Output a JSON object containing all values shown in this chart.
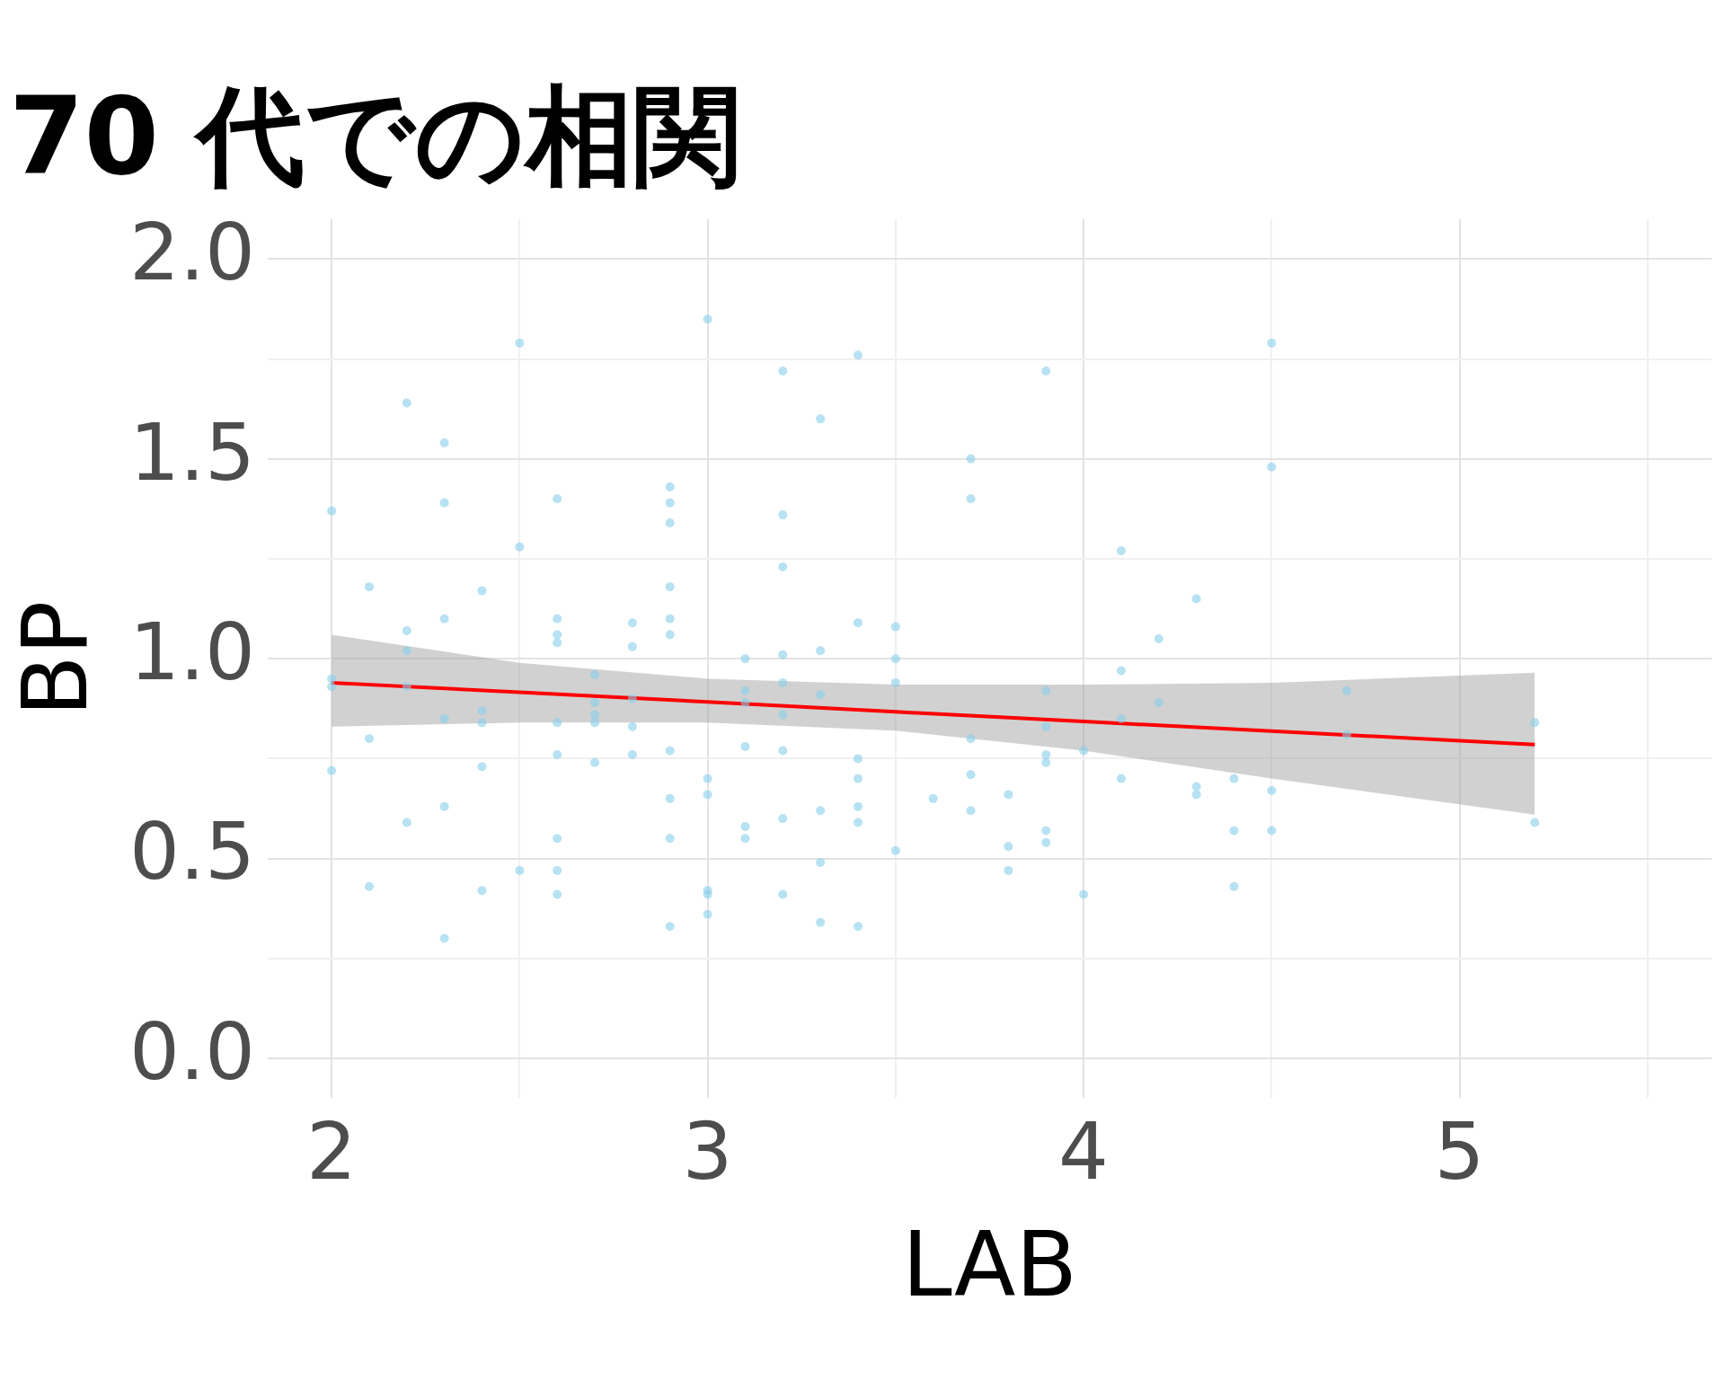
{
  "chart_data": {
    "type": "scatter",
    "title": "70 代での相関",
    "xlabel": "LAB",
    "ylabel": "BP",
    "xlim": [
      1.83,
      5.67
    ],
    "ylim": [
      -0.1,
      2.1
    ],
    "xticks": [
      2,
      {
        "value": 2.5,
        "label": null
      },
      3,
      {
        "value": 3.5,
        "label": null
      },
      4,
      {
        "value": 4.5,
        "label": null
      },
      5,
      {
        "value": 5.5,
        "label": null
      }
    ],
    "yticks": [
      {
        "value": 0,
        "label": "0.0"
      },
      {
        "value": 0.25,
        "label": null
      },
      0.5,
      {
        "value": 0.75,
        "label": null
      },
      {
        "value": 1,
        "label": "1.0"
      },
      {
        "value": 1.25,
        "label": null
      },
      1.5,
      {
        "value": 1.75,
        "label": null
      },
      {
        "value": 2,
        "label": "2.0"
      }
    ],
    "grid": true,
    "legend": false,
    "series": [
      {
        "type": "scatter",
        "marker": "circle",
        "color": "#87ceeb",
        "x": [
          2,
          2,
          2,
          2,
          2.1,
          2.1,
          2.1,
          2.2,
          2.2,
          2.2,
          2.2,
          2.2,
          2.3,
          2.3,
          2.3,
          2.3,
          2.3,
          2.3,
          2.4,
          2.4,
          2.4,
          2.4,
          2.4,
          2.5,
          2.5,
          2.5,
          2.6,
          2.6,
          2.6,
          2.6,
          2.6,
          2.6,
          2.6,
          2.6,
          2.6,
          2.7,
          2.7,
          2.7,
          2.7,
          2.7,
          2.8,
          2.8,
          2.8,
          2.8,
          2.8,
          2.9,
          2.9,
          2.9,
          2.9,
          2.9,
          2.9,
          2.9,
          2.9,
          2.9,
          2.9,
          3,
          3,
          3,
          3,
          3,
          3,
          3.1,
          3.1,
          3.1,
          3.1,
          3.1,
          3.1,
          3.2,
          3.2,
          3.2,
          3.2,
          3.2,
          3.2,
          3.2,
          3.2,
          3.2,
          3.3,
          3.3,
          3.3,
          3.3,
          3.3,
          3.3,
          3.4,
          3.4,
          3.4,
          3.4,
          3.4,
          3.4,
          3.4,
          3.5,
          3.5,
          3.5,
          3.5,
          3.6,
          3.7,
          3.7,
          3.7,
          3.7,
          3.7,
          3.8,
          3.8,
          3.8,
          3.9,
          3.9,
          3.9,
          3.9,
          3.9,
          3.9,
          3.9,
          4,
          4,
          4.1,
          4.1,
          4.1,
          4.1,
          4.2,
          4.2,
          4.3,
          4.3,
          4.3,
          4.4,
          4.4,
          4.4,
          4.5,
          4.5,
          4.5,
          4.5,
          4.7,
          4.7,
          5.2,
          5.2
        ],
        "values": [
          1.37,
          0.95,
          0.93,
          0.72,
          1.18,
          0.8,
          0.43,
          1.64,
          1.07,
          1.02,
          0.93,
          0.59,
          1.54,
          1.39,
          1.1,
          0.85,
          0.63,
          0.3,
          1.17,
          0.87,
          0.84,
          0.73,
          0.42,
          1.79,
          1.28,
          0.47,
          1.4,
          1.1,
          1.06,
          1.04,
          0.84,
          0.76,
          0.55,
          0.47,
          0.41,
          0.96,
          0.89,
          0.86,
          0.84,
          0.74,
          1.09,
          1.03,
          0.9,
          0.83,
          0.76,
          1.43,
          1.39,
          1.34,
          1.18,
          1.1,
          1.06,
          0.77,
          0.65,
          0.55,
          0.33,
          1.85,
          0.7,
          0.66,
          0.42,
          0.41,
          0.36,
          1,
          0.92,
          0.89,
          0.78,
          0.58,
          0.55,
          1.72,
          1.36,
          1.23,
          1.01,
          0.94,
          0.86,
          0.77,
          0.6,
          0.41,
          1.6,
          1.02,
          0.91,
          0.62,
          0.49,
          0.34,
          1.76,
          1.09,
          0.75,
          0.7,
          0.63,
          0.59,
          0.33,
          1.08,
          1,
          0.94,
          0.52,
          0.65,
          1.5,
          1.4,
          0.8,
          0.71,
          0.62,
          0.66,
          0.53,
          0.47,
          1.72,
          0.92,
          0.83,
          0.76,
          0.74,
          0.57,
          0.54,
          0.77,
          0.41,
          1.27,
          0.97,
          0.85,
          0.7,
          1.05,
          0.89,
          1.15,
          0.68,
          0.66,
          0.7,
          0.57,
          0.43,
          1.79,
          1.48,
          0.67,
          0.57,
          0.92,
          0.81,
          0.84,
          0.59
        ]
      },
      {
        "type": "line",
        "color": "#ff0000",
        "x": [
          2,
          2.5,
          3,
          3.5,
          4,
          4.5,
          5.2
        ],
        "values": [
          0.94,
          0.916,
          0.892,
          0.867,
          0.843,
          0.819,
          0.785
        ],
        "lower": [
          0.83,
          0.84,
          0.84,
          0.82,
          0.77,
          0.7,
          0.61
        ],
        "upper": [
          1.06,
          0.99,
          0.95,
          0.935,
          0.935,
          0.94,
          0.965
        ]
      }
    ]
  }
}
